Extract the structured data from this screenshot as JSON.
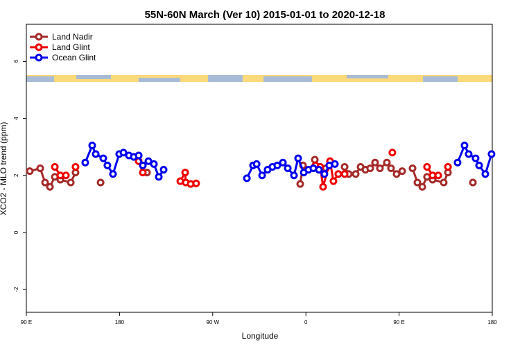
{
  "chart_data": {
    "type": "line",
    "title": "55N-60N March (Ver 10)   2015-01-01 to 2020-12-18",
    "x_label": "Longitude",
    "y_label": "XCO2 - MLO trend (ppm)",
    "xlim": [
      90,
      540
    ],
    "ylim": [
      -2.8,
      7.3
    ],
    "xticks": [
      {
        "value": 90,
        "label": "90 E"
      },
      180,
      {
        "value": 270,
        "label": "90 W"
      },
      {
        "value": 360,
        "label": "0"
      },
      {
        "value": 450,
        "label": "90 E"
      },
      {
        "value": 540,
        "label": "180"
      }
    ],
    "yticks": [
      -2,
      0,
      2,
      4,
      6
    ],
    "legend": "top-left",
    "series": [
      {
        "name": "Land Nadir",
        "color": "#a52a2a",
        "x": [
          93.3,
          103.4,
          108.1,
          112.8,
          117.5,
          122.8,
          132.9,
          137.5,
          null,
          161.7,
          null,
          206.5,
          null,
          354.5,
          357.2,
          null,
          368.6,
          373.3,
          379.3,
          null,
          397.4,
          401.4,
          408.1,
          412.8,
          417.5,
          422.1,
          426.8,
          431.5,
          438.2,
          442.2,
          447.6,
          453,
          null,
          463,
          467.7,
          472.4,
          477,
          482.4,
          493.1,
          497.2,
          null,
          521.3
        ],
        "values": [
          2.15,
          2.25,
          1.75,
          1.6,
          1.95,
          1.85,
          1.75,
          2.1,
          null,
          1.75,
          null,
          2.1,
          null,
          1.7,
          2.35,
          null,
          2.55,
          2.3,
          2.25,
          null,
          2.3,
          2.05,
          2.05,
          2.3,
          2.2,
          2.25,
          2.45,
          2.25,
          2.45,
          2.25,
          2.05,
          2.15,
          null,
          2.25,
          1.75,
          1.6,
          1.95,
          1.85,
          1.75,
          2.1,
          null,
          1.75
        ]
      },
      {
        "name": "Land Glint",
        "color": "#ee0000",
        "x": [
          117.5,
          122.8,
          128.2,
          null,
          137.5,
          null,
          198.5,
          202.5,
          null,
          238.7,
          243.4,
          244,
          248.7,
          254,
          null,
          369.2,
          373.9,
          376.6,
          383.3,
          386.6,
          391.3,
          397.4,
          null,
          443.5,
          null,
          477,
          482.4,
          487.8,
          null,
          497.2
        ],
        "values": [
          2.3,
          2.0,
          2.0,
          null,
          2.3,
          null,
          2.5,
          2.1,
          null,
          1.8,
          2.1,
          1.75,
          1.7,
          1.72,
          null,
          2.35,
          2.3,
          1.6,
          2.5,
          1.8,
          2.05,
          2.05,
          null,
          2.8,
          null,
          2.3,
          2.0,
          2.0,
          null,
          2.3
        ]
      },
      {
        "name": "Ocean Glint",
        "color": "#0000ee",
        "x": [
          146.9,
          153.6,
          157,
          164.3,
          168.3,
          173.7,
          179.7,
          183.8,
          189.1,
          193.8,
          198.5,
          202.5,
          207.9,
          213.2,
          217.9,
          222.6,
          null,
          303,
          309,
          312.4,
          317.7,
          323,
          327.7,
          332.4,
          337.8,
          342.5,
          348.5,
          352.5,
          357.9,
          362.5,
          367.2,
          372.6,
          377.9,
          382.6,
          388,
          null,
          506.5,
          513.2,
          517.2,
          523.9,
          527.3,
          533.3,
          539.3
        ],
        "values": [
          2.45,
          3.05,
          2.75,
          2.6,
          2.35,
          2.05,
          2.75,
          2.8,
          2.7,
          2.65,
          2.7,
          2.35,
          2.5,
          2.4,
          1.95,
          2.2,
          null,
          1.9,
          2.35,
          2.4,
          2.0,
          2.2,
          2.3,
          2.35,
          2.45,
          2.25,
          2.0,
          2.6,
          2.1,
          2.2,
          2.25,
          2.2,
          2.05,
          2.35,
          2.4,
          null,
          2.45,
          3.05,
          2.75,
          2.6,
          2.35,
          2.05,
          2.75
        ]
      }
    ]
  }
}
